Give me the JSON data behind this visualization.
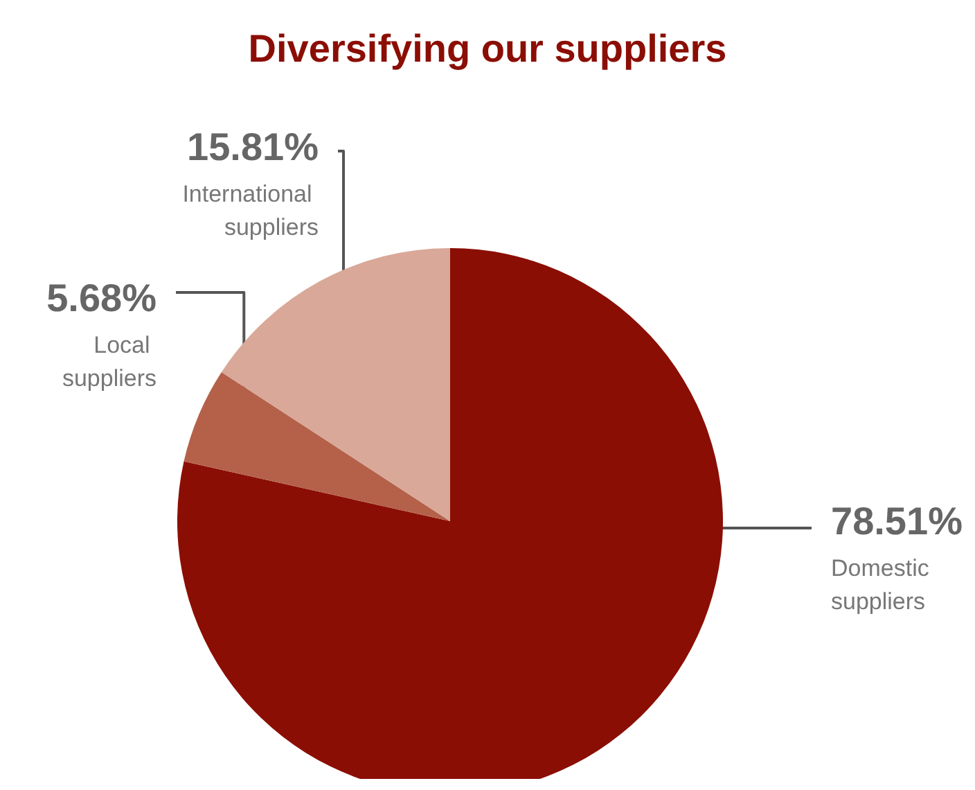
{
  "chart_data": {
    "type": "pie",
    "title": "Diversifying our suppliers",
    "categories": [
      "Domestic suppliers",
      "Local suppliers",
      "International suppliers"
    ],
    "values": [
      78.51,
      5.68,
      15.81
    ],
    "value_labels": [
      "78.51%",
      "5.68%",
      "15.81%"
    ],
    "colors": [
      "#8b0e04",
      "#b5614a",
      "#d9a898"
    ],
    "legend": false
  }
}
